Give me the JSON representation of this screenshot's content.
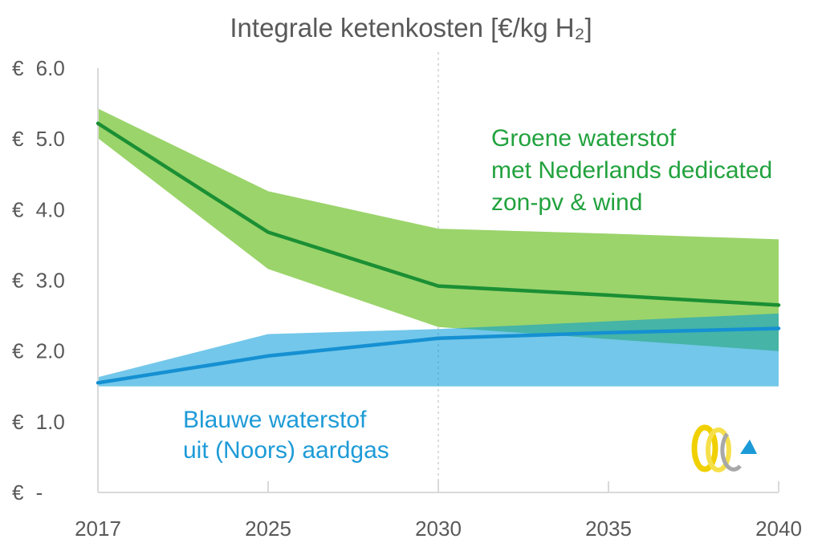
{
  "chart_data": {
    "type": "line",
    "title": "Integrale ketenkosten [€/kg H₂]",
    "categories": [
      "2017",
      "2025",
      "2030",
      "2035",
      "2040"
    ],
    "ylim": [
      0,
      6
    ],
    "y_ticks": {
      "values": [
        6,
        5,
        4,
        3,
        2,
        1,
        0
      ],
      "labels": [
        "€ 6.0",
        "€ 5.0",
        "€ 4.0",
        "€ 3.0",
        "€ 2.0",
        "€ 1.0",
        "€ -"
      ]
    },
    "grid": false,
    "reference_lines": [
      {
        "x": "2030",
        "style": "dotted"
      }
    ],
    "series": [
      {
        "label_lines": [
          "Groene waterstof",
          "met Nederlands dedicated",
          "zon-pv & wind"
        ],
        "line_color": "#1b8f34",
        "band_color": "#9bd46b",
        "label_color": "#22a23e",
        "values": [
          5.22,
          3.68,
          2.92,
          2.79,
          2.65
        ],
        "band_upper": [
          5.43,
          4.26,
          3.73,
          3.66,
          3.58
        ],
        "band_lower": [
          5.01,
          3.16,
          2.34,
          2.17,
          2.0
        ]
      },
      {
        "label_lines": [
          "Blauwe waterstof",
          "uit (Noors) aardgas"
        ],
        "line_color": "#1590d2",
        "band_color": "#0099d8",
        "label_color": "#1e9bd7",
        "values": [
          1.55,
          1.93,
          2.18,
          2.26,
          2.32
        ],
        "band_upper": [
          1.63,
          2.24,
          2.31,
          2.42,
          2.53
        ],
        "band_lower": [
          1.5,
          1.5,
          1.5,
          1.5,
          1.5
        ]
      }
    ]
  },
  "colors": {
    "text": "#595959",
    "axis": "#d9d9d9",
    "reference_line": "#d0d0d0",
    "background": "#ffffff"
  },
  "logo": {
    "icon": "rings-triangle-logo"
  }
}
